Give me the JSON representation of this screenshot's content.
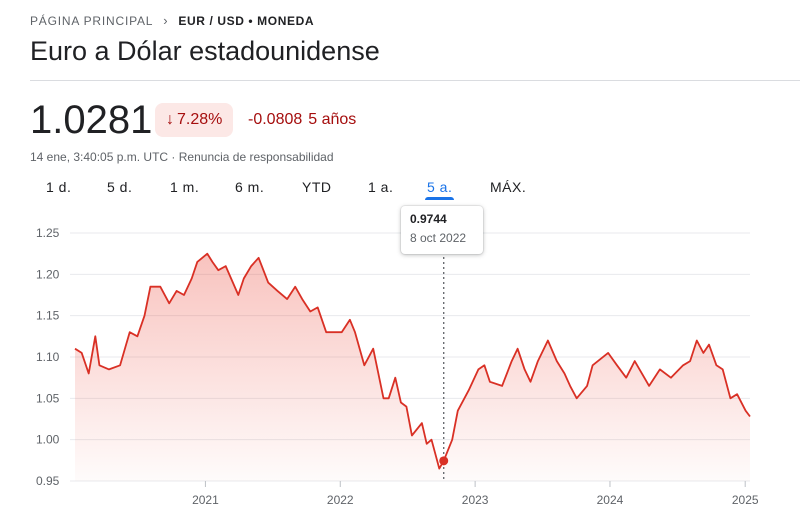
{
  "breadcrumb": {
    "home": "PÁGINA PRINCIPAL",
    "current": "EUR / USD • MONEDA"
  },
  "title": "Euro a Dólar estadounidense",
  "quote": {
    "price": "1.0281",
    "change_pct": "7.28%",
    "change_abs": "-0.0808",
    "change_period": "5 años",
    "timestamp": "14 ene, 3:40:05 p.m. UTC · ",
    "disclaimer": "Renuncia de responsabilidad"
  },
  "tabs": [
    {
      "label": "1 d.",
      "active": false
    },
    {
      "label": "5 d.",
      "active": false
    },
    {
      "label": "1 m.",
      "active": false
    },
    {
      "label": "6 m.",
      "active": false
    },
    {
      "label": "YTD",
      "active": false
    },
    {
      "label": "1 a.",
      "active": false
    },
    {
      "label": "5 a.",
      "active": true
    },
    {
      "label": "MÁX.",
      "active": false
    }
  ],
  "tooltip": {
    "value": "0.9744",
    "date": "8 oct 2022"
  },
  "colors": {
    "line": "#d93025",
    "area": "#ea4335",
    "negative_text": "#a50e0e",
    "badge_bg": "#fce8e6",
    "active_tab": "#1a73e8"
  },
  "icons": {
    "breadcrumb_separator": "chevron-right-icon",
    "change_arrow": "arrow-down-icon"
  },
  "chart_data": {
    "type": "area",
    "title": "",
    "xlabel": "",
    "ylabel": "",
    "ylim": [
      0.95,
      1.25
    ],
    "yticks": [
      "1.25",
      "1.20",
      "1.15",
      "1.10",
      "1.05",
      "1.00",
      "0.95"
    ],
    "xticks": [
      "2021",
      "2022",
      "2023",
      "2024",
      "2025"
    ],
    "grid": true,
    "marker": {
      "date": "2022-10-08",
      "value": 0.9744
    },
    "series": [
      {
        "x": [
          "2020-01-14",
          "2020-02-01",
          "2020-02-20",
          "2020-03-09",
          "2020-03-20",
          "2020-04-15",
          "2020-05-15",
          "2020-06-10",
          "2020-07-01",
          "2020-07-20",
          "2020-08-05",
          "2020-09-01",
          "2020-09-25",
          "2020-10-15",
          "2020-11-04",
          "2020-11-25",
          "2020-12-10",
          "2021-01-06",
          "2021-01-20",
          "2021-02-05",
          "2021-02-25",
          "2021-03-31",
          "2021-04-15",
          "2021-05-05",
          "2021-05-25",
          "2021-06-20",
          "2021-07-15",
          "2021-08-10",
          "2021-09-01",
          "2021-09-20",
          "2021-10-12",
          "2021-11-01",
          "2021-11-24",
          "2021-12-15",
          "2022-01-05",
          "2022-01-27",
          "2022-02-10",
          "2022-03-07",
          "2022-03-31",
          "2022-04-28",
          "2022-05-12",
          "2022-05-30",
          "2022-06-14",
          "2022-06-29",
          "2022-07-14",
          "2022-08-10",
          "2022-08-23",
          "2022-09-05",
          "2022-09-26",
          "2022-10-08",
          "2022-10-31",
          "2022-11-15",
          "2022-12-15",
          "2023-01-10",
          "2023-01-26",
          "2023-02-10",
          "2023-03-15",
          "2023-04-10",
          "2023-04-26",
          "2023-05-15",
          "2023-05-31",
          "2023-06-20",
          "2023-07-17",
          "2023-08-10",
          "2023-08-31",
          "2023-09-15",
          "2023-10-03",
          "2023-10-31",
          "2023-11-15",
          "2023-12-27",
          "2024-01-20",
          "2024-02-14",
          "2024-03-08",
          "2024-04-16",
          "2024-05-15",
          "2024-06-14",
          "2024-07-17",
          "2024-08-05",
          "2024-08-23",
          "2024-09-10",
          "2024-09-25",
          "2024-10-15",
          "2024-11-01",
          "2024-11-22",
          "2024-12-10",
          "2025-01-02",
          "2025-01-14"
        ],
        "values": [
          1.11,
          1.105,
          1.08,
          1.125,
          1.09,
          1.085,
          1.09,
          1.13,
          1.125,
          1.15,
          1.185,
          1.185,
          1.165,
          1.18,
          1.175,
          1.195,
          1.215,
          1.225,
          1.215,
          1.205,
          1.21,
          1.175,
          1.195,
          1.21,
          1.22,
          1.19,
          1.18,
          1.17,
          1.185,
          1.17,
          1.155,
          1.16,
          1.13,
          1.13,
          1.13,
          1.145,
          1.13,
          1.09,
          1.11,
          1.05,
          1.05,
          1.075,
          1.045,
          1.04,
          1.005,
          1.02,
          0.995,
          1.0,
          0.965,
          0.9744,
          1.0,
          1.035,
          1.06,
          1.085,
          1.09,
          1.07,
          1.065,
          1.095,
          1.11,
          1.085,
          1.07,
          1.095,
          1.12,
          1.095,
          1.08,
          1.065,
          1.05,
          1.065,
          1.09,
          1.105,
          1.09,
          1.075,
          1.095,
          1.065,
          1.085,
          1.075,
          1.09,
          1.095,
          1.12,
          1.105,
          1.115,
          1.09,
          1.085,
          1.05,
          1.055,
          1.035,
          1.028
        ]
      }
    ]
  }
}
